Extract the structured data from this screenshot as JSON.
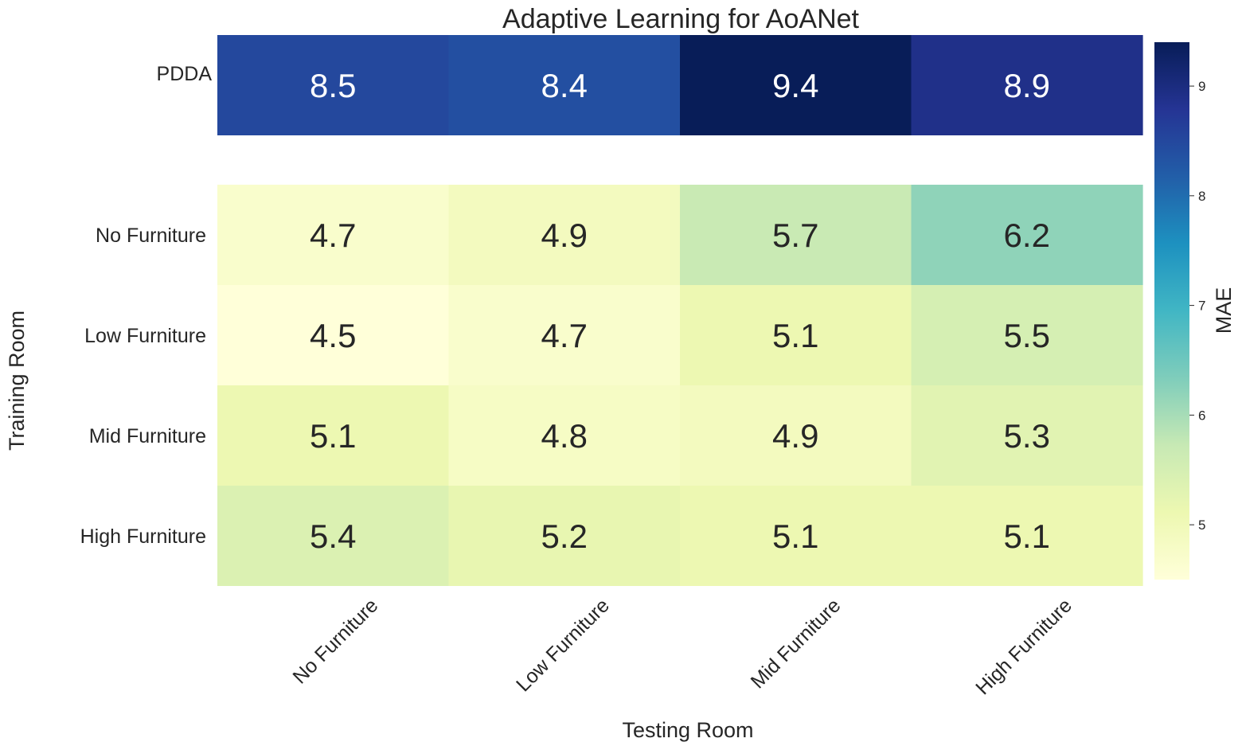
{
  "chart_data": {
    "type": "heatmap",
    "title": "Adaptive Learning for AoANet",
    "xlabel": "Testing Room",
    "ylabel": "Training Room",
    "x_categories": [
      "No Furniture",
      "Low Furniture",
      "Mid Furniture",
      "High Furniture"
    ],
    "y_categories": [
      "PDDA",
      "No Furniture",
      "Low Furniture",
      "Mid Furniture",
      "High Furniture"
    ],
    "values": [
      [
        8.5,
        8.4,
        9.4,
        8.9
      ],
      [
        4.7,
        4.9,
        5.7,
        6.2
      ],
      [
        4.5,
        4.7,
        5.1,
        5.5
      ],
      [
        5.1,
        4.8,
        4.9,
        5.3
      ],
      [
        5.4,
        5.2,
        5.1,
        5.1
      ]
    ],
    "value_labels": [
      [
        "8.5",
        "8.4",
        "9.4",
        "8.9"
      ],
      [
        "4.7",
        "4.9",
        "5.7",
        "6.2"
      ],
      [
        "4.5",
        "4.7",
        "5.1",
        "5.5"
      ],
      [
        "5.1",
        "4.8",
        "4.9",
        "5.3"
      ],
      [
        "5.4",
        "5.2",
        "5.1",
        "5.1"
      ]
    ],
    "colormap": "YlGnBu",
    "vmin": 4.5,
    "vmax": 9.4,
    "colorbar": {
      "label": "MAE",
      "ticks": [
        5,
        6,
        7,
        8,
        9
      ],
      "tick_labels": [
        "5",
        "6",
        "7",
        "8",
        "9"
      ]
    },
    "text_colors": {
      "on_light": "#262626",
      "on_dark": "#ffffff"
    }
  }
}
